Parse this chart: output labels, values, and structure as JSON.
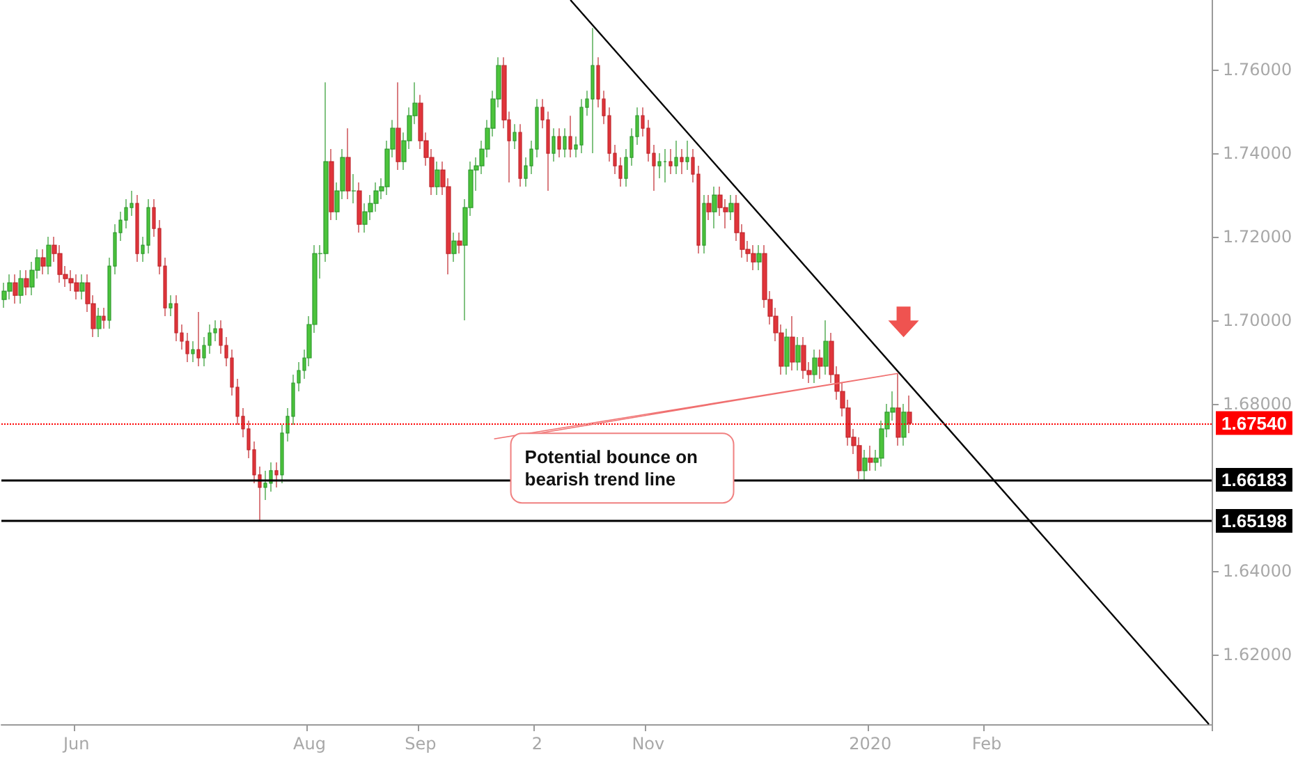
{
  "chart_data": {
    "type": "candlestick",
    "categories": [
      null,
      null,
      null,
      null,
      null,
      null,
      null,
      null,
      null,
      null,
      null,
      null,
      null,
      "Jun",
      null,
      null,
      null,
      null,
      null,
      null,
      null,
      null,
      null,
      null,
      null,
      null,
      null,
      null,
      null,
      null,
      null,
      null,
      null,
      null,
      null,
      null,
      null,
      null,
      null,
      null,
      null,
      null,
      null,
      null,
      null,
      null,
      null,
      null,
      null,
      null,
      null,
      null,
      null,
      null,
      null,
      "Aug",
      null,
      null,
      null,
      null,
      null,
      null,
      null,
      null,
      null,
      null,
      null,
      null,
      null,
      null,
      null,
      null,
      null,
      null,
      null,
      "Sep",
      null,
      null,
      null,
      null,
      null,
      null,
      null,
      null,
      null,
      null,
      null,
      null,
      null,
      null,
      null,
      null,
      null,
      null,
      null,
      null,
      "2",
      null,
      null,
      null,
      null,
      null,
      null,
      null,
      null,
      null,
      null,
      null,
      null,
      null,
      null,
      null,
      null,
      null,
      null,
      null,
      "Nov",
      null,
      null,
      null,
      null,
      null,
      null,
      null,
      null,
      null,
      null,
      null,
      null,
      null,
      null,
      null,
      null,
      null,
      null,
      null,
      null,
      null,
      null,
      null,
      null,
      null,
      null,
      null,
      null,
      null,
      null,
      null,
      null,
      null,
      null,
      null,
      null,
      null,
      null,
      null,
      "2020",
      null,
      null,
      null,
      null,
      null,
      null,
      null,
      null,
      null,
      null,
      null,
      null,
      null,
      null,
      null,
      null,
      null,
      null,
      null,
      null,
      "Feb",
      null,
      null,
      null,
      null,
      null,
      null,
      null,
      null,
      null,
      null,
      null,
      null,
      null,
      null,
      null,
      null,
      null,
      null,
      null,
      null,
      null,
      null,
      null,
      null,
      null,
      null,
      null,
      null,
      null,
      null,
      null,
      null,
      null,
      null,
      null,
      null,
      null,
      null,
      null,
      null
    ],
    "ohlc": [
      [
        1.705,
        1.709,
        1.703,
        1.707
      ],
      [
        1.707,
        1.711,
        1.705,
        1.709
      ],
      [
        1.709,
        1.711,
        1.704,
        1.706
      ],
      [
        1.706,
        1.712,
        1.704,
        1.71
      ],
      [
        1.71,
        1.712,
        1.706,
        1.708
      ],
      [
        1.708,
        1.714,
        1.706,
        1.712
      ],
      [
        1.712,
        1.717,
        1.71,
        1.715
      ],
      [
        1.715,
        1.717,
        1.711,
        1.713
      ],
      [
        1.713,
        1.72,
        1.711,
        1.718
      ],
      [
        1.718,
        1.72,
        1.714,
        1.716
      ],
      [
        1.716,
        1.718,
        1.709,
        1.711
      ],
      [
        1.711,
        1.713,
        1.708,
        1.71
      ],
      [
        1.71,
        1.712,
        1.707,
        1.709
      ],
      [
        1.709,
        1.711,
        1.705,
        1.707
      ],
      [
        1.707,
        1.711,
        1.705,
        1.709
      ],
      [
        1.709,
        1.711,
        1.702,
        1.704
      ],
      [
        1.704,
        1.706,
        1.696,
        1.698
      ],
      [
        1.698,
        1.703,
        1.696,
        1.701
      ],
      [
        1.701,
        1.703,
        1.698,
        1.7
      ],
      [
        1.7,
        1.715,
        1.698,
        1.713
      ],
      [
        1.713,
        1.723,
        1.711,
        1.721
      ],
      [
        1.721,
        1.726,
        1.719,
        1.724
      ],
      [
        1.724,
        1.729,
        1.722,
        1.727
      ],
      [
        1.727,
        1.731,
        1.725,
        1.728
      ],
      [
        1.728,
        1.73,
        1.714,
        1.716
      ],
      [
        1.716,
        1.72,
        1.714,
        1.718
      ],
      [
        1.718,
        1.729,
        1.716,
        1.727
      ],
      [
        1.727,
        1.729,
        1.72,
        1.722
      ],
      [
        1.722,
        1.724,
        1.711,
        1.713
      ],
      [
        1.713,
        1.715,
        1.701,
        1.703
      ],
      [
        1.703,
        1.706,
        1.701,
        1.704
      ],
      [
        1.704,
        1.706,
        1.695,
        1.697
      ],
      [
        1.697,
        1.699,
        1.693,
        1.695
      ],
      [
        1.695,
        1.697,
        1.69,
        1.692
      ],
      [
        1.692,
        1.695,
        1.69,
        1.693
      ],
      [
        1.693,
        1.702,
        1.689,
        1.691
      ],
      [
        1.691,
        1.696,
        1.689,
        1.694
      ],
      [
        1.694,
        1.699,
        1.692,
        1.697
      ],
      [
        1.697,
        1.7,
        1.695,
        1.698
      ],
      [
        1.698,
        1.7,
        1.692,
        1.694
      ],
      [
        1.694,
        1.696,
        1.689,
        1.691
      ],
      [
        1.691,
        1.693,
        1.682,
        1.684
      ],
      [
        1.684,
        1.686,
        1.675,
        1.677
      ],
      [
        1.677,
        1.679,
        1.672,
        1.674
      ],
      [
        1.674,
        1.676,
        1.667,
        1.669
      ],
      [
        1.669,
        1.671,
        1.661,
        1.663
      ],
      [
        1.663,
        1.665,
        1.652,
        1.66
      ],
      [
        1.66,
        1.664,
        1.657,
        1.661
      ],
      [
        1.661,
        1.666,
        1.659,
        1.664
      ],
      [
        1.664,
        1.666,
        1.66,
        1.663
      ],
      [
        1.663,
        1.675,
        1.661,
        1.673
      ],
      [
        1.673,
        1.679,
        1.671,
        1.677
      ],
      [
        1.677,
        1.687,
        1.675,
        1.685
      ],
      [
        1.685,
        1.69,
        1.683,
        1.688
      ],
      [
        1.688,
        1.693,
        1.686,
        1.691
      ],
      [
        1.691,
        1.701,
        1.689,
        1.699
      ],
      [
        1.699,
        1.718,
        1.697,
        1.716
      ],
      [
        1.716,
        1.718,
        1.71,
        1.716
      ],
      [
        1.716,
        1.757,
        1.714,
        1.738
      ],
      [
        1.738,
        1.741,
        1.724,
        1.726
      ],
      [
        1.726,
        1.733,
        1.724,
        1.731
      ],
      [
        1.731,
        1.741,
        1.729,
        1.739
      ],
      [
        1.739,
        1.746,
        1.729,
        1.731
      ],
      [
        1.731,
        1.735,
        1.728,
        1.731
      ],
      [
        1.731,
        1.733,
        1.721,
        1.723
      ],
      [
        1.723,
        1.728,
        1.721,
        1.726
      ],
      [
        1.726,
        1.73,
        1.724,
        1.728
      ],
      [
        1.728,
        1.733,
        1.726,
        1.731
      ],
      [
        1.731,
        1.734,
        1.729,
        1.732
      ],
      [
        1.732,
        1.743,
        1.73,
        1.741
      ],
      [
        1.741,
        1.748,
        1.739,
        1.746
      ],
      [
        1.746,
        1.757,
        1.736,
        1.738
      ],
      [
        1.738,
        1.745,
        1.736,
        1.743
      ],
      [
        1.743,
        1.751,
        1.741,
        1.749
      ],
      [
        1.749,
        1.757,
        1.747,
        1.752
      ],
      [
        1.752,
        1.754,
        1.741,
        1.743
      ],
      [
        1.743,
        1.745,
        1.737,
        1.739
      ],
      [
        1.739,
        1.741,
        1.73,
        1.732
      ],
      [
        1.732,
        1.738,
        1.73,
        1.736
      ],
      [
        1.736,
        1.738,
        1.73,
        1.732
      ],
      [
        1.732,
        1.734,
        1.711,
        1.716
      ],
      [
        1.716,
        1.721,
        1.714,
        1.719
      ],
      [
        1.719,
        1.721,
        1.716,
        1.718
      ],
      [
        1.718,
        1.729,
        1.7,
        1.727
      ],
      [
        1.727,
        1.738,
        1.725,
        1.736
      ],
      [
        1.736,
        1.739,
        1.731,
        1.737
      ],
      [
        1.737,
        1.743,
        1.735,
        1.741
      ],
      [
        1.741,
        1.748,
        1.739,
        1.746
      ],
      [
        1.746,
        1.755,
        1.744,
        1.753
      ],
      [
        1.753,
        1.763,
        1.751,
        1.761
      ],
      [
        1.761,
        1.763,
        1.746,
        1.748
      ],
      [
        1.748,
        1.75,
        1.733,
        1.743
      ],
      [
        1.743,
        1.747,
        1.741,
        1.745
      ],
      [
        1.745,
        1.747,
        1.732,
        1.734
      ],
      [
        1.734,
        1.739,
        1.732,
        1.737
      ],
      [
        1.737,
        1.743,
        1.735,
        1.741
      ],
      [
        1.741,
        1.753,
        1.739,
        1.751
      ],
      [
        1.751,
        1.753,
        1.746,
        1.748
      ],
      [
        1.748,
        1.75,
        1.731,
        1.74
      ],
      [
        1.74,
        1.746,
        1.738,
        1.744
      ],
      [
        1.744,
        1.746,
        1.739,
        1.741
      ],
      [
        1.741,
        1.746,
        1.739,
        1.744
      ],
      [
        1.744,
        1.749,
        1.739,
        1.741
      ],
      [
        1.741,
        1.744,
        1.739,
        1.742
      ],
      [
        1.742,
        1.753,
        1.74,
        1.751
      ],
      [
        1.751,
        1.755,
        1.749,
        1.753
      ],
      [
        1.753,
        1.77,
        1.74,
        1.761
      ],
      [
        1.761,
        1.763,
        1.751,
        1.753
      ],
      [
        1.753,
        1.755,
        1.747,
        1.749
      ],
      [
        1.749,
        1.751,
        1.738,
        1.74
      ],
      [
        1.74,
        1.742,
        1.735,
        1.737
      ],
      [
        1.737,
        1.739,
        1.732,
        1.734
      ],
      [
        1.734,
        1.741,
        1.732,
        1.739
      ],
      [
        1.739,
        1.746,
        1.737,
        1.744
      ],
      [
        1.744,
        1.751,
        1.742,
        1.749
      ],
      [
        1.749,
        1.751,
        1.744,
        1.746
      ],
      [
        1.746,
        1.748,
        1.738,
        1.74
      ],
      [
        1.74,
        1.742,
        1.731,
        1.737
      ],
      [
        1.737,
        1.74,
        1.734,
        1.738
      ],
      [
        1.738,
        1.741,
        1.733,
        1.738
      ],
      [
        1.738,
        1.741,
        1.735,
        1.737
      ],
      [
        1.737,
        1.743,
        1.735,
        1.739
      ],
      [
        1.739,
        1.741,
        1.735,
        1.738
      ],
      [
        1.738,
        1.743,
        1.736,
        1.739
      ],
      [
        1.739,
        1.741,
        1.733,
        1.735
      ],
      [
        1.735,
        1.737,
        1.716,
        1.718
      ],
      [
        1.718,
        1.73,
        1.716,
        1.728
      ],
      [
        1.728,
        1.73,
        1.724,
        1.726
      ],
      [
        1.726,
        1.732,
        1.722,
        1.73
      ],
      [
        1.73,
        1.732,
        1.725,
        1.727
      ],
      [
        1.727,
        1.729,
        1.722,
        1.726
      ],
      [
        1.726,
        1.73,
        1.724,
        1.728
      ],
      [
        1.728,
        1.73,
        1.719,
        1.721
      ],
      [
        1.721,
        1.723,
        1.715,
        1.717
      ],
      [
        1.717,
        1.719,
        1.714,
        1.716
      ],
      [
        1.716,
        1.718,
        1.712,
        1.714
      ],
      [
        1.714,
        1.718,
        1.712,
        1.716
      ],
      [
        1.716,
        1.718,
        1.703,
        1.705
      ],
      [
        1.705,
        1.707,
        1.699,
        1.701
      ],
      [
        1.701,
        1.703,
        1.695,
        1.697
      ],
      [
        1.697,
        1.699,
        1.687,
        1.689
      ],
      [
        1.689,
        1.698,
        1.687,
        1.696
      ],
      [
        1.696,
        1.701,
        1.688,
        1.69
      ],
      [
        1.69,
        1.696,
        1.688,
        1.694
      ],
      [
        1.694,
        1.696,
        1.686,
        1.688
      ],
      [
        1.688,
        1.69,
        1.685,
        1.687
      ],
      [
        1.687,
        1.693,
        1.685,
        1.691
      ],
      [
        1.691,
        1.693,
        1.686,
        1.689
      ],
      [
        1.689,
        1.7,
        1.687,
        1.695
      ],
      [
        1.695,
        1.697,
        1.685,
        1.687
      ],
      [
        1.687,
        1.689,
        1.681,
        1.683
      ],
      [
        1.683,
        1.685,
        1.677,
        1.679
      ],
      [
        1.679,
        1.681,
        1.67,
        1.672
      ],
      [
        1.672,
        1.674,
        1.668,
        1.67
      ],
      [
        1.67,
        1.672,
        1.662,
        1.664
      ],
      [
        1.664,
        1.669,
        1.6618,
        1.667
      ],
      [
        1.667,
        1.67,
        1.664,
        1.666
      ],
      [
        1.666,
        1.669,
        1.664,
        1.667
      ],
      [
        1.667,
        1.676,
        1.665,
        1.674
      ],
      [
        1.674,
        1.68,
        1.672,
        1.678
      ],
      [
        1.678,
        1.683,
        1.676,
        1.679
      ],
      [
        1.679,
        1.6873,
        1.67,
        1.672
      ],
      [
        1.672,
        1.68,
        1.67,
        1.678
      ],
      [
        1.678,
        1.682,
        1.673,
        1.6754
      ],
      null,
      null,
      null,
      null,
      null,
      null,
      null,
      null,
      null,
      null,
      null,
      null,
      null,
      null,
      null,
      null,
      null,
      null,
      null,
      null,
      null,
      null,
      null,
      null,
      null,
      null,
      null,
      null,
      null,
      null,
      null,
      null,
      null,
      null,
      null,
      null,
      null,
      null,
      null,
      null,
      null,
      null,
      null,
      null,
      null,
      null,
      null,
      null,
      null,
      null,
      null,
      null,
      null,
      null
    ],
    "series": [
      {
        "type": "line",
        "color": "#000000",
        "values": [
          null,
          null,
          null,
          null,
          null,
          null,
          null,
          null,
          null,
          null,
          null,
          null,
          null,
          null,
          null,
          null,
          null,
          null,
          null,
          null,
          null,
          null,
          null,
          null,
          null,
          null,
          null,
          null,
          null,
          null,
          null,
          null,
          null,
          null,
          null,
          null,
          null,
          null,
          null,
          null,
          null,
          null,
          null,
          null,
          null,
          null,
          null,
          null,
          null,
          null,
          null,
          null,
          null,
          null,
          null,
          null,
          null,
          null,
          null,
          null,
          null,
          null,
          null,
          null,
          null,
          null,
          null,
          null,
          null,
          null,
          null,
          null,
          null,
          null,
          null,
          null,
          null,
          null,
          null,
          null,
          null,
          null,
          null,
          null,
          null,
          null,
          null,
          null,
          null,
          null,
          null,
          null,
          null,
          null,
          null,
          null,
          null,
          null,
          null,
          null,
          null,
          null,
          1.7767,
          null,
          null,
          null,
          null,
          null,
          null,
          null,
          null,
          null,
          null,
          null,
          null,
          null,
          null,
          null,
          null,
          null,
          null,
          null,
          null,
          null,
          null,
          null,
          null,
          null,
          null,
          null,
          null,
          null,
          null,
          null,
          null,
          null,
          null,
          null,
          null,
          null,
          null,
          null,
          null,
          null,
          null,
          null,
          null,
          null,
          null,
          null,
          null,
          null,
          null,
          null,
          null,
          null,
          null,
          null,
          null,
          null,
          null,
          null,
          null,
          null,
          null,
          null,
          null,
          null,
          null,
          null,
          null,
          null,
          null,
          null,
          null,
          null,
          null,
          null,
          null,
          null,
          null,
          null,
          null,
          null,
          null,
          null,
          null,
          null,
          null,
          null,
          null,
          null,
          null,
          null,
          null,
          null,
          null,
          null,
          null,
          null,
          null,
          null,
          null,
          null,
          null,
          null,
          null,
          null,
          null,
          null,
          null,
          null,
          null,
          null,
          null,
          null,
          null,
          1.6033
        ]
      }
    ],
    "ylim": [
      1.6033,
      1.7767
    ],
    "yticks": [
      {
        "value": 1.62,
        "label": "1.62000"
      },
      {
        "value": 1.64,
        "label": "1.64000"
      },
      {
        "value": 1.68,
        "label": "1.68000"
      },
      {
        "value": 1.7,
        "label": "1.70000"
      },
      {
        "value": 1.72,
        "label": "1.72000"
      },
      {
        "value": 1.74,
        "label": "1.74000"
      },
      {
        "value": 1.76,
        "label": "1.76000"
      }
    ],
    "ref_lines": [
      {
        "axis": "y",
        "value": 1.6754,
        "label": "1.67540",
        "color": "#ff0000",
        "line_style": "dotted"
      },
      {
        "axis": "y",
        "value": 1.66183,
        "label": "1.66183",
        "color": "#000000",
        "line_style": "solid"
      },
      {
        "axis": "y",
        "value": 1.65198,
        "label": "1.65198",
        "color": "#000000",
        "line_style": "solid"
      }
    ],
    "annotations": [
      "Potential bounce on bearish trend line"
    ],
    "grid": false
  }
}
